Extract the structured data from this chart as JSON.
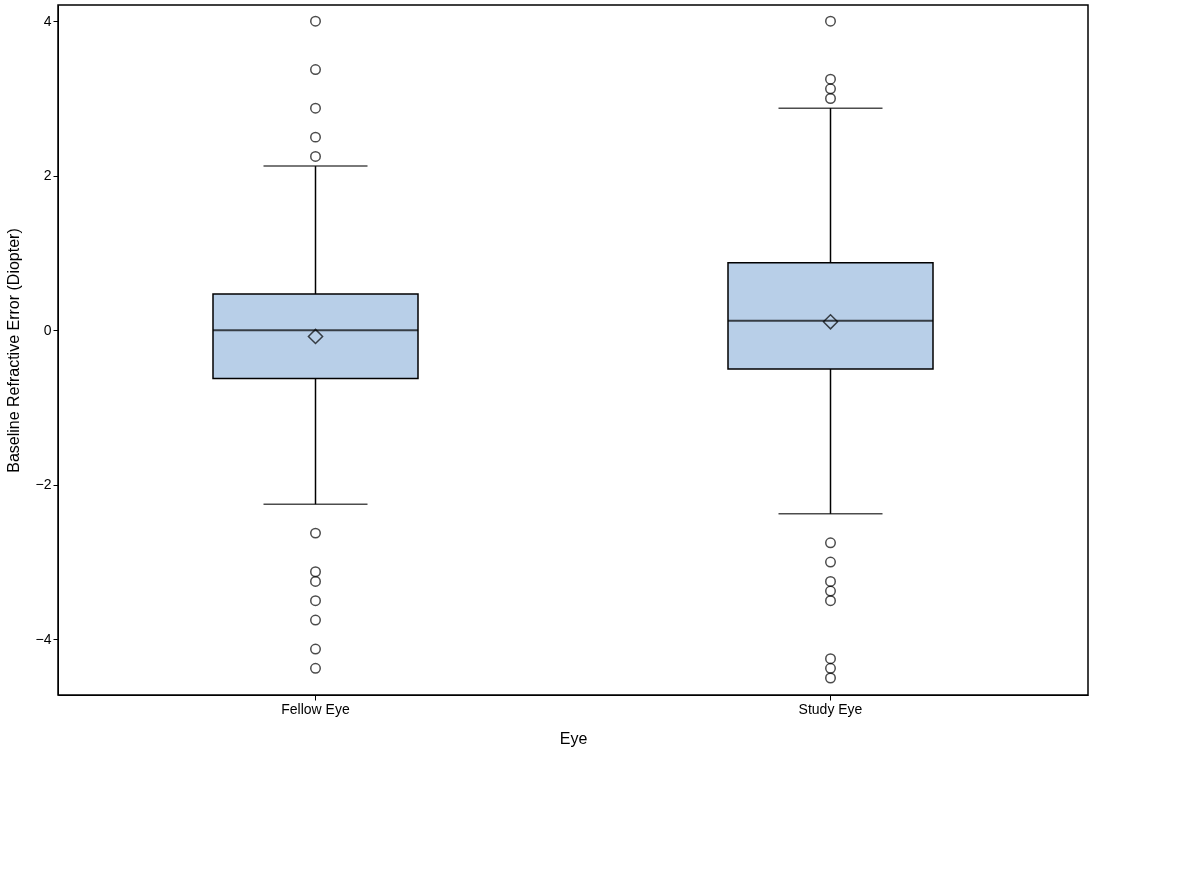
{
  "chart_data": {
    "type": "box",
    "xlabel": "Eye",
    "ylabel": "Baseline Refractive Error (Diopter)",
    "categories": [
      "Fellow Eye",
      "Study Eye"
    ],
    "series": [
      {
        "color": "#b8cfe8",
        "boxes": [
          {
            "low": -2.25,
            "q1": -0.625,
            "median": 0,
            "q3": 0.47,
            "high": 2.125,
            "mean": -0.08,
            "outliers": [
              4,
              3.375,
              2.875,
              2.5,
              2.25,
              -2.625,
              -3.125,
              -3.25,
              -3.5,
              -3.75,
              -4.125,
              -4.375
            ]
          },
          {
            "low": -2.375,
            "q1": -0.5,
            "median": 0.125,
            "q3": 0.875,
            "high": 2.875,
            "mean": 0.11,
            "outliers": [
              4,
              3.25,
              3.125,
              3.0,
              -2.75,
              -3.0,
              -3.25,
              -3.375,
              -3.5,
              -4.25,
              -4.375,
              -4.5
            ]
          }
        ]
      }
    ],
    "ylim": [
      -4.72,
      4.21
    ],
    "yticks": [
      -4,
      -2,
      0,
      2,
      4
    ],
    "grid": false,
    "legend": false,
    "marker": "diamond"
  }
}
